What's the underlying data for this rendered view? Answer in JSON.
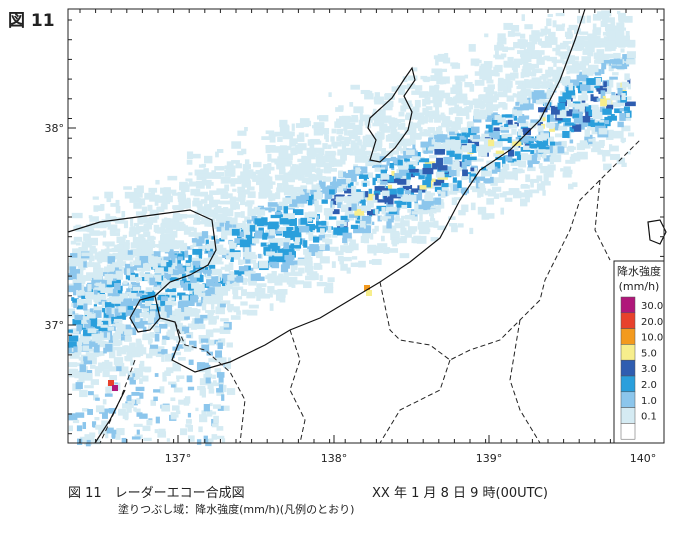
{
  "figure_label": "図 11",
  "map": {
    "lat_labels": [
      "38°",
      "37°"
    ],
    "lon_labels": [
      "137°",
      "138°",
      "139°",
      "140°"
    ]
  },
  "legend": {
    "title": "降水強度",
    "unit": "(mm/h)",
    "entries": [
      {
        "label": "30.0",
        "color": "#b0177a"
      },
      {
        "label": "20.0",
        "color": "#e8412c"
      },
      {
        "label": "10.0",
        "color": "#f39a1e"
      },
      {
        "label": "5.0",
        "color": "#f7ee8c"
      },
      {
        "label": "3.0",
        "color": "#2f5db0"
      },
      {
        "label": "2.0",
        "color": "#2a9fdc"
      },
      {
        "label": "1.0",
        "color": "#8cc6ec"
      },
      {
        "label": "0.1",
        "color": "#d5ebf3"
      },
      {
        "label": "",
        "color": "#ffffff"
      }
    ]
  },
  "caption": {
    "title": "図 11　レーダーエコー合成図",
    "datetime": "XX 年 1 月 8 日 9 時(00UTC)",
    "note": "塗りつぶし域：降水強度(mm/h)(凡例のとおり)"
  }
}
